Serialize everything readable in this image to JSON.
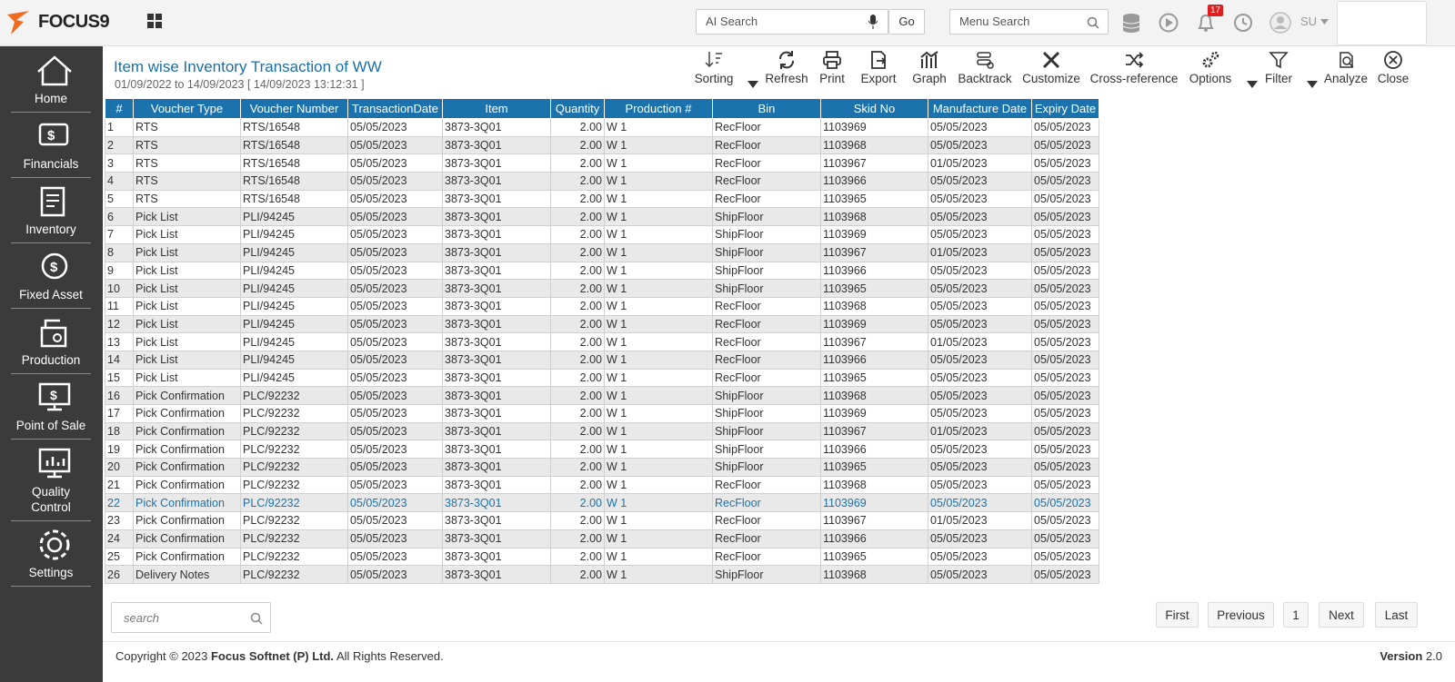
{
  "header": {
    "logo": "FOCUS9",
    "ai_search": "AI Search",
    "go": "Go",
    "menu_search": "Menu Search",
    "notifications": "17",
    "user": "SU"
  },
  "sidebar": [
    "Home",
    "Financials",
    "Inventory",
    "Fixed Asset",
    "Production",
    "Point of Sale",
    "Quality Control",
    "Settings"
  ],
  "report": {
    "title": "Item wise Inventory Transaction of WW",
    "subtitle": "01/09/2022 to 14/09/2023 [ 14/09/2023 13:12:31 ]"
  },
  "toolbar": [
    "Sorting",
    "Refresh",
    "Print",
    "Export",
    "Graph",
    "Backtrack",
    "Customize",
    "Cross-reference",
    "Options",
    "Filter",
    "Analyze",
    "Close"
  ],
  "table": {
    "columns": [
      "#",
      "Voucher Type",
      "Voucher Number",
      "TransactionDate",
      "Item",
      "Quantity",
      "Production #",
      "Bin",
      "Skid No",
      "Manufacture Date",
      "Expiry Date"
    ],
    "rows": [
      [
        "1",
        "RTS",
        "RTS/16548",
        "05/05/2023",
        "3873-3Q01",
        "2.00",
        "W 1",
        "RecFloor",
        "1103969",
        "05/05/2023",
        "05/05/2023"
      ],
      [
        "2",
        "RTS",
        "RTS/16548",
        "05/05/2023",
        "3873-3Q01",
        "2.00",
        "W 1",
        "RecFloor",
        "1103968",
        "05/05/2023",
        "05/05/2023"
      ],
      [
        "3",
        "RTS",
        "RTS/16548",
        "05/05/2023",
        "3873-3Q01",
        "2.00",
        "W 1",
        "RecFloor",
        "1103967",
        "01/05/2023",
        "05/05/2023"
      ],
      [
        "4",
        "RTS",
        "RTS/16548",
        "05/05/2023",
        "3873-3Q01",
        "2.00",
        "W 1",
        "RecFloor",
        "1103966",
        "05/05/2023",
        "05/05/2023"
      ],
      [
        "5",
        "RTS",
        "RTS/16548",
        "05/05/2023",
        "3873-3Q01",
        "2.00",
        "W 1",
        "RecFloor",
        "1103965",
        "05/05/2023",
        "05/05/2023"
      ],
      [
        "6",
        "Pick List",
        "PLI/94245",
        "05/05/2023",
        "3873-3Q01",
        "2.00",
        "W 1",
        "ShipFloor",
        "1103968",
        "05/05/2023",
        "05/05/2023"
      ],
      [
        "7",
        "Pick List",
        "PLI/94245",
        "05/05/2023",
        "3873-3Q01",
        "2.00",
        "W 1",
        "ShipFloor",
        "1103969",
        "05/05/2023",
        "05/05/2023"
      ],
      [
        "8",
        "Pick List",
        "PLI/94245",
        "05/05/2023",
        "3873-3Q01",
        "2.00",
        "W 1",
        "ShipFloor",
        "1103967",
        "01/05/2023",
        "05/05/2023"
      ],
      [
        "9",
        "Pick List",
        "PLI/94245",
        "05/05/2023",
        "3873-3Q01",
        "2.00",
        "W 1",
        "ShipFloor",
        "1103966",
        "05/05/2023",
        "05/05/2023"
      ],
      [
        "10",
        "Pick List",
        "PLI/94245",
        "05/05/2023",
        "3873-3Q01",
        "2.00",
        "W 1",
        "ShipFloor",
        "1103965",
        "05/05/2023",
        "05/05/2023"
      ],
      [
        "11",
        "Pick List",
        "PLI/94245",
        "05/05/2023",
        "3873-3Q01",
        "2.00",
        "W 1",
        "RecFloor",
        "1103968",
        "05/05/2023",
        "05/05/2023"
      ],
      [
        "12",
        "Pick List",
        "PLI/94245",
        "05/05/2023",
        "3873-3Q01",
        "2.00",
        "W 1",
        "RecFloor",
        "1103969",
        "05/05/2023",
        "05/05/2023"
      ],
      [
        "13",
        "Pick List",
        "PLI/94245",
        "05/05/2023",
        "3873-3Q01",
        "2.00",
        "W 1",
        "RecFloor",
        "1103967",
        "01/05/2023",
        "05/05/2023"
      ],
      [
        "14",
        "Pick List",
        "PLI/94245",
        "05/05/2023",
        "3873-3Q01",
        "2.00",
        "W 1",
        "RecFloor",
        "1103966",
        "05/05/2023",
        "05/05/2023"
      ],
      [
        "15",
        "Pick List",
        "PLI/94245",
        "05/05/2023",
        "3873-3Q01",
        "2.00",
        "W 1",
        "RecFloor",
        "1103965",
        "05/05/2023",
        "05/05/2023"
      ],
      [
        "16",
        "Pick Confirmation",
        "PLC/92232",
        "05/05/2023",
        "3873-3Q01",
        "2.00",
        "W 1",
        "ShipFloor",
        "1103968",
        "05/05/2023",
        "05/05/2023"
      ],
      [
        "17",
        "Pick Confirmation",
        "PLC/92232",
        "05/05/2023",
        "3873-3Q01",
        "2.00",
        "W 1",
        "ShipFloor",
        "1103969",
        "05/05/2023",
        "05/05/2023"
      ],
      [
        "18",
        "Pick Confirmation",
        "PLC/92232",
        "05/05/2023",
        "3873-3Q01",
        "2.00",
        "W 1",
        "ShipFloor",
        "1103967",
        "01/05/2023",
        "05/05/2023"
      ],
      [
        "19",
        "Pick Confirmation",
        "PLC/92232",
        "05/05/2023",
        "3873-3Q01",
        "2.00",
        "W 1",
        "ShipFloor",
        "1103966",
        "05/05/2023",
        "05/05/2023"
      ],
      [
        "20",
        "Pick Confirmation",
        "PLC/92232",
        "05/05/2023",
        "3873-3Q01",
        "2.00",
        "W 1",
        "ShipFloor",
        "1103965",
        "05/05/2023",
        "05/05/2023"
      ],
      [
        "21",
        "Pick Confirmation",
        "PLC/92232",
        "05/05/2023",
        "3873-3Q01",
        "2.00",
        "W 1",
        "RecFloor",
        "1103968",
        "05/05/2023",
        "05/05/2023"
      ],
      [
        "22",
        "Pick Confirmation",
        "PLC/92232",
        "05/05/2023",
        "3873-3Q01",
        "2.00",
        "W 1",
        "RecFloor",
        "1103969",
        "05/05/2023",
        "05/05/2023"
      ],
      [
        "23",
        "Pick Confirmation",
        "PLC/92232",
        "05/05/2023",
        "3873-3Q01",
        "2.00",
        "W 1",
        "RecFloor",
        "1103967",
        "01/05/2023",
        "05/05/2023"
      ],
      [
        "24",
        "Pick Confirmation",
        "PLC/92232",
        "05/05/2023",
        "3873-3Q01",
        "2.00",
        "W 1",
        "RecFloor",
        "1103966",
        "05/05/2023",
        "05/05/2023"
      ],
      [
        "25",
        "Pick Confirmation",
        "PLC/92232",
        "05/05/2023",
        "3873-3Q01",
        "2.00",
        "W 1",
        "RecFloor",
        "1103965",
        "05/05/2023",
        "05/05/2023"
      ],
      [
        "26",
        "Delivery Notes",
        "PLC/92232",
        "05/05/2023",
        "3873-3Q01",
        "2.00",
        "W 1",
        "ShipFloor",
        "1103968",
        "05/05/2023",
        "05/05/2023"
      ]
    ]
  },
  "search": "search",
  "pagination": [
    "First",
    "Previous",
    "1",
    "Next",
    "Last"
  ],
  "footer": {
    "copyright": "Copyright © 2023",
    "company": "Focus Softnet (P) Ltd.",
    "rights": "All Rights Reserved.",
    "version_label": "Version",
    "version": "2.0"
  }
}
